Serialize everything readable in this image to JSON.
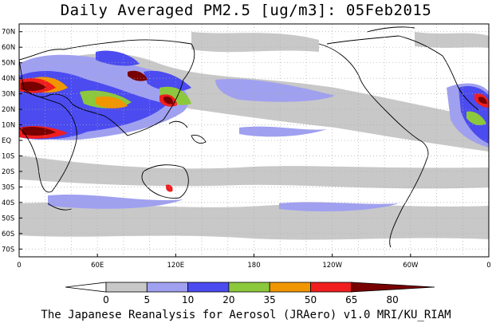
{
  "title": "Daily Averaged PM2.5 [ug/m3]: 05Feb2015",
  "credit": "The Japanese Reanalysis for Aerosol (JRAero) v1.0 MRI/KU_RIAM",
  "lat_labels": [
    "70N",
    "60N",
    "50N",
    "40N",
    "30N",
    "20N",
    "10N",
    "EQ",
    "10S",
    "20S",
    "30S",
    "40S",
    "50S",
    "60S",
    "70S"
  ],
  "lon_labels": [
    "0",
    "60E",
    "120E",
    "180",
    "120W",
    "60W",
    "0"
  ],
  "legend": {
    "labels": [
      "0",
      "5",
      "10",
      "20",
      "35",
      "50",
      "65",
      "80"
    ],
    "colors": [
      "#ffffff",
      "#c8c8c8",
      "#a0a0f0",
      "#4b4bf0",
      "#8cc83c",
      "#f09600",
      "#f01e1e",
      "#780000"
    ]
  },
  "map_colors": {
    "land_outline": "#000000",
    "grid": "#aaaaaa"
  }
}
